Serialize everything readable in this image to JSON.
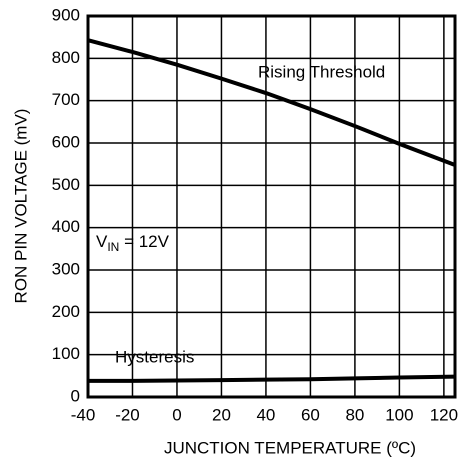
{
  "chart_data": {
    "type": "line",
    "x_label": "JUNCTION TEMPERATURE (ºC)",
    "y_label": "RON PIN VOLTAGE (mV)",
    "x": [
      -40,
      -20,
      0,
      20,
      40,
      60,
      80,
      100,
      125
    ],
    "series": [
      {
        "name": "Rising Threshold",
        "color": "#000000",
        "values": [
          843,
          815,
          785,
          752,
          718,
          680,
          640,
          598,
          548
        ]
      },
      {
        "name": "Hysteresis",
        "color": "#000000",
        "values": [
          38,
          38,
          39,
          40,
          41,
          42,
          44,
          46,
          48
        ]
      }
    ],
    "annotations": [
      {
        "parts": [
          "V",
          "IN",
          " = 12V"
        ]
      }
    ],
    "xlim": [
      -40,
      125
    ],
    "xticks": [
      -40,
      -20,
      0,
      20,
      40,
      60,
      80,
      100,
      120
    ],
    "ylim": [
      0,
      900
    ],
    "yticks": [
      0,
      100,
      200,
      300,
      400,
      500,
      600,
      700,
      800,
      900
    ],
    "grid": true
  }
}
